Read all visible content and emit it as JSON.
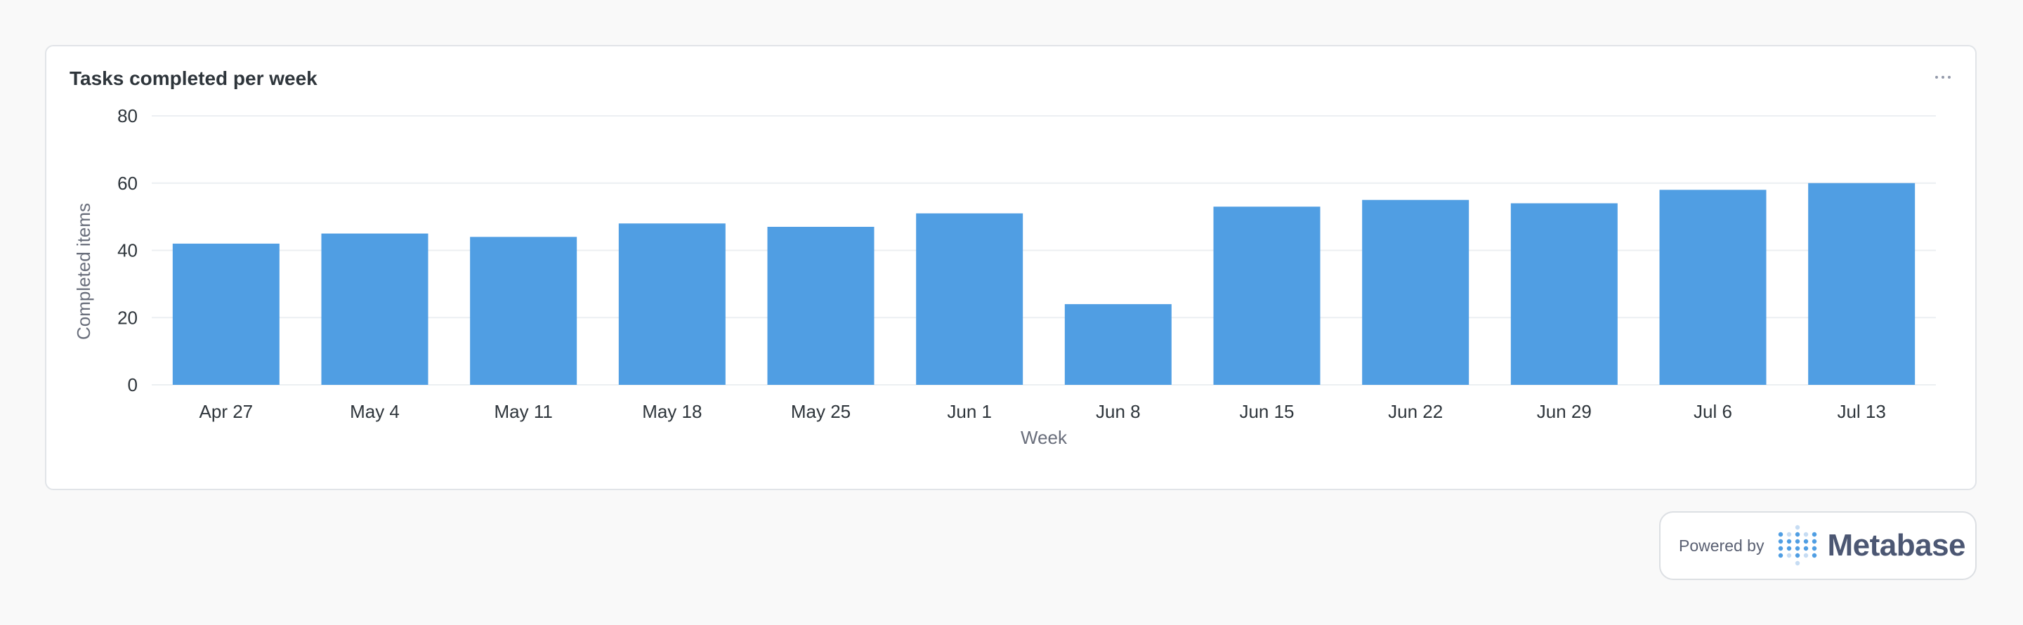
{
  "card": {
    "title": "Tasks completed per week"
  },
  "chart_data": {
    "type": "bar",
    "title": "Tasks completed per week",
    "xlabel": "Week",
    "ylabel": "Completed items",
    "categories": [
      "Apr 27",
      "May 4",
      "May 11",
      "May 18",
      "May 25",
      "Jun 1",
      "Jun 8",
      "Jun 15",
      "Jun 22",
      "Jun 29",
      "Jul 6",
      "Jul 13"
    ],
    "series": [
      {
        "values": [
          42,
          45,
          44,
          48,
          47,
          51,
          24,
          53,
          55,
          54,
          58,
          60
        ]
      }
    ],
    "ylim": [
      0,
      80
    ],
    "yticks": [
      0,
      20,
      40,
      60,
      80
    ],
    "grid": true,
    "legend": "none",
    "bar_color": "#509ee3"
  },
  "footer": {
    "powered_by": "Powered by",
    "brand": "Metabase",
    "logo_icon": "metabase-logo-icon"
  },
  "colors": {
    "background": "#f9f9f9",
    "card": "#ffffff",
    "bar": "#509ee3",
    "gridline": "#eceff2",
    "text": "#2e353b",
    "muted": "#696e7b"
  }
}
